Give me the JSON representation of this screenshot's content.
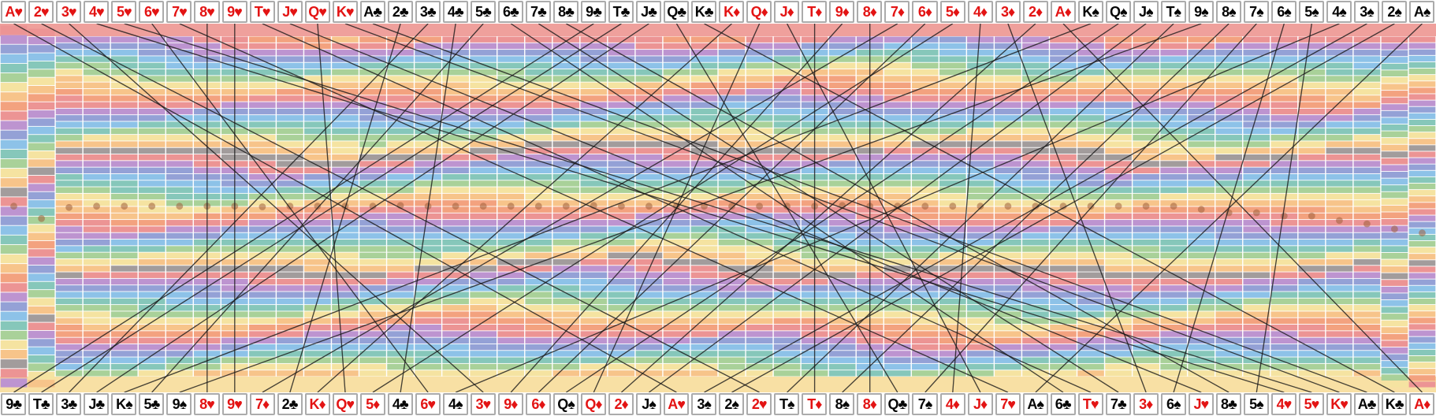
{
  "title": "Card shuffle permutation visualization",
  "colors": {
    "red_suit": "#e31414",
    "black_suit": "#060606",
    "card_bg": "#ffffff",
    "card_border": "#ababab",
    "top_band": "#efA09c",
    "bottom_band": "#f8e0a4",
    "trace_line": "rgba(25,25,25,0.8)",
    "marker_dot": "rgba(158,94,58,0.55)",
    "gray_band": "#a29c9c",
    "palette": [
      "#ec9494",
      "#bd94d0",
      "#94a1d6",
      "#8dc2e8",
      "#86c7ba",
      "#a9d199",
      "#f5e3a1",
      "#f7c48a",
      "#f3a27f"
    ]
  },
  "chart_data": {
    "type": "permutation_flow",
    "description": "52 playing cards: sorted deck order along the top edge, shuffled final order along the bottom edge. A straight dark line links each card's top slot to its bottom slot; cards 8♥, 9♥, T♦ and 8♦ keep the same index, producing vertical lines. The background is a grid of drifting pastel rainbow bands (9-color cycle) with gray streak bands near rows 17 and 35, a salmon band strip under the top cards, a cream band strip above the bottom cards, and a dotted brown marker trace near mid-height that sinks lower in the final columns.",
    "top_order": [
      "A♥",
      "2♥",
      "3♥",
      "4♥",
      "5♥",
      "6♥",
      "7♥",
      "8♥",
      "9♥",
      "T♥",
      "J♥",
      "Q♥",
      "K♥",
      "A♣",
      "2♣",
      "3♣",
      "4♣",
      "5♣",
      "6♣",
      "7♣",
      "8♣",
      "9♣",
      "T♣",
      "J♣",
      "Q♣",
      "K♣",
      "K♦",
      "Q♦",
      "J♦",
      "T♦",
      "9♦",
      "8♦",
      "7♦",
      "6♦",
      "5♦",
      "4♦",
      "3♦",
      "2♦",
      "A♦",
      "K♠",
      "Q♠",
      "J♠",
      "T♠",
      "9♠",
      "8♠",
      "7♠",
      "6♠",
      "5♠",
      "4♠",
      "3♠",
      "2♠",
      "A♠"
    ],
    "bottom_order": [
      "9♣",
      "T♣",
      "3♣",
      "J♣",
      "K♠",
      "5♣",
      "9♠",
      "8♥",
      "9♥",
      "7♦",
      "2♣",
      "K♦",
      "Q♥",
      "5♦",
      "4♣",
      "6♥",
      "4♠",
      "3♥",
      "9♦",
      "6♦",
      "Q♠",
      "Q♦",
      "2♦",
      "J♠",
      "A♥",
      "3♠",
      "2♠",
      "2♥",
      "T♠",
      "T♦",
      "8♠",
      "8♦",
      "Q♣",
      "7♠",
      "4♦",
      "J♦",
      "7♥",
      "A♠",
      "6♣",
      "T♥",
      "7♣",
      "3♦",
      "6♠",
      "J♥",
      "8♣",
      "5♠",
      "4♥",
      "5♥",
      "K♥",
      "A♣",
      "K♣",
      "A♦"
    ],
    "fixed_cards": [
      "8♥",
      "9♥",
      "T♦",
      "8♦"
    ],
    "columns": 52,
    "rows_per_column": 52,
    "background": {
      "palette_cycle": 9,
      "gray_band_rows": [
        17,
        35
      ],
      "note": "pastel rainbow horizontal bands with gentle drift; compressed band columns at far left and far right edges"
    },
    "marker_dot_rows": [
      25.5,
      27.4,
      25.7,
      25.5,
      25.5,
      25.5,
      25.5,
      25.5,
      25.5,
      25.6,
      25.5,
      25.5,
      25.5,
      25.5,
      25.4,
      25.5,
      25.5,
      25.5,
      25.5,
      25.5,
      25.5,
      25.4,
      25.5,
      25.5,
      25.5,
      25.5,
      25.5,
      25.5,
      25.5,
      25.5,
      25.4,
      25.5,
      25.5,
      25.5,
      25.5,
      25.5,
      25.5,
      25.5,
      25.5,
      25.5,
      25.5,
      25.5,
      25.5,
      26.0,
      26.5,
      26.5,
      27.0,
      27.0,
      27.7,
      28.2,
      29.0,
      29.6
    ]
  }
}
